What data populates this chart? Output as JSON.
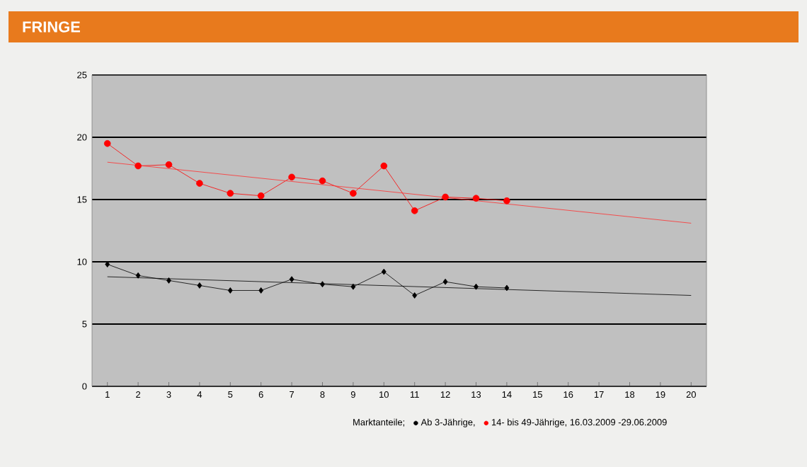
{
  "chart_data": {
    "type": "line",
    "title": "FRINGE",
    "legend_title": "Marktanteile;",
    "xlim": [
      0.5,
      20.5
    ],
    "xticks": [
      1,
      2,
      3,
      4,
      5,
      6,
      7,
      8,
      9,
      10,
      11,
      12,
      13,
      14,
      15,
      16,
      17,
      18,
      19,
      20
    ],
    "ylim": [
      0,
      25
    ],
    "yticks": [
      0,
      5,
      10,
      15,
      20,
      25
    ],
    "grid": "y",
    "legend": "bottom",
    "series": [
      {
        "name": "Ab 3-Jährige,",
        "color": "#000000",
        "marker": "diamond",
        "x": [
          1,
          2,
          3,
          4,
          5,
          6,
          7,
          8,
          9,
          10,
          11,
          12,
          13,
          14
        ],
        "values": [
          9.8,
          8.9,
          8.5,
          8.1,
          7.7,
          7.7,
          8.6,
          8.2,
          8,
          9.2,
          7.3,
          8.4,
          8,
          7.9
        ]
      },
      {
        "name": "14- bis 49-Jährige, 16.03.2009 -29.06.2009",
        "color": "#ff0000",
        "marker": "circle",
        "x": [
          1,
          2,
          3,
          4,
          5,
          6,
          7,
          8,
          9,
          10,
          11,
          12,
          13,
          14
        ],
        "values": [
          19.5,
          17.7,
          17.8,
          16.3,
          15.5,
          15.3,
          16.8,
          16.5,
          15.5,
          17.7,
          14.1,
          15.2,
          15.1,
          14.9
        ]
      },
      {
        "type": "line",
        "color": "#000000",
        "marker": "none",
        "x": [
          1,
          20
        ],
        "values": [
          8.8,
          7.3
        ]
      },
      {
        "type": "line",
        "color": "#ff3030",
        "marker": "none",
        "x": [
          1,
          20
        ],
        "values": [
          18,
          13.1
        ]
      }
    ]
  }
}
